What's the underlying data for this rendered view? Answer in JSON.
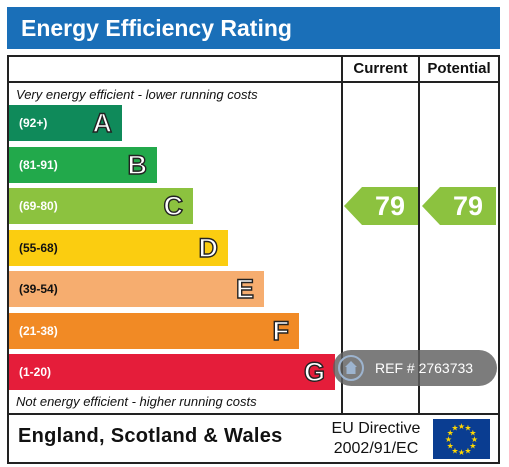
{
  "header": {
    "title": "Energy Efficiency Rating"
  },
  "columns": {
    "current": "Current",
    "potential": "Potential"
  },
  "captions": {
    "top": "Very energy efficient - lower running costs",
    "bottom": "Not energy efficient - higher running costs"
  },
  "chart_data": {
    "type": "bar",
    "categories": [
      "A",
      "B",
      "C",
      "D",
      "E",
      "F",
      "G"
    ],
    "ranges": [
      "(92+)",
      "(81-91)",
      "(69-80)",
      "(55-68)",
      "(39-54)",
      "(21-38)",
      "(1-20)"
    ],
    "colors": [
      "#0f8a5a",
      "#22a94b",
      "#8cc23f",
      "#fbcd10",
      "#f6ad6f",
      "#f18a25",
      "#e51d3a"
    ],
    "current": 79,
    "potential": 79,
    "current_color": "#8cc23f",
    "potential_color": "#8cc23f"
  },
  "footer": {
    "country": "England, Scotland & Wales",
    "directive_line1": "EU Directive",
    "directive_line2": "2002/91/EC"
  },
  "overlay": {
    "ref_text": "REF # 2763733",
    "home_icon": "home-icon"
  }
}
